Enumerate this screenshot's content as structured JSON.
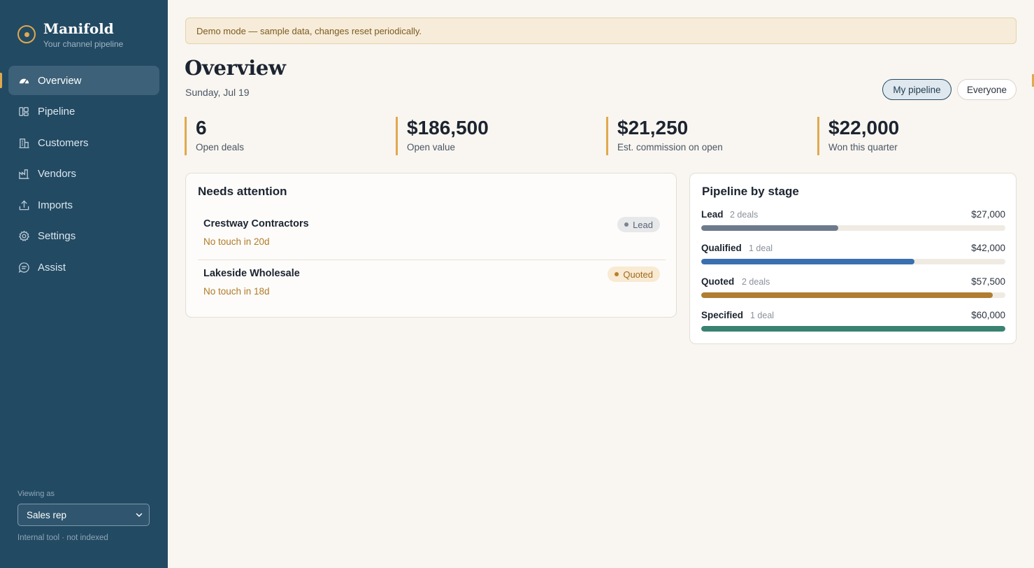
{
  "brand": {
    "name": "Manifold",
    "subtitle": "Your channel pipeline"
  },
  "nav": [
    {
      "label": "Overview",
      "icon": "dashboard-icon",
      "active": true
    },
    {
      "label": "Pipeline",
      "icon": "pipeline-icon",
      "active": false
    },
    {
      "label": "Customers",
      "icon": "building-icon",
      "active": false
    },
    {
      "label": "Vendors",
      "icon": "factory-icon",
      "active": false
    },
    {
      "label": "Imports",
      "icon": "upload-icon",
      "active": false
    },
    {
      "label": "Settings",
      "icon": "gear-icon",
      "active": false
    },
    {
      "label": "Assist",
      "icon": "chat-icon",
      "active": false
    }
  ],
  "sidebar_footer": {
    "viewing_label": "Viewing as",
    "role": "Sales rep",
    "note": "Internal tool · not indexed"
  },
  "banner": "Demo mode — sample data, changes reset periodically.",
  "page": {
    "title": "Overview",
    "date": "Sunday, Jul 19"
  },
  "scope_toggle": {
    "mine": "My pipeline",
    "everyone": "Everyone",
    "selected": "mine"
  },
  "stats": [
    {
      "value": "6",
      "label": "Open deals"
    },
    {
      "value": "$186,500",
      "label": "Open value"
    },
    {
      "value": "$21,250",
      "label": "Est. commission on open"
    },
    {
      "value": "$22,000",
      "label": "Won this quarter"
    }
  ],
  "attention": {
    "title": "Needs attention",
    "items": [
      {
        "name": "Crestway Contractors",
        "sub": "No touch in 20d",
        "badge": "Lead"
      },
      {
        "name": "Lakeside Wholesale",
        "sub": "No touch in 18d",
        "badge": "Quoted"
      }
    ]
  },
  "stages": {
    "title": "Pipeline by stage",
    "items": [
      {
        "name": "Lead",
        "count": "2 deals",
        "amount": "$27,000",
        "fraction": 0.45,
        "color": "#6c7a8c"
      },
      {
        "name": "Qualified",
        "count": "1 deal",
        "amount": "$42,000",
        "fraction": 0.7,
        "color": "#3a6fb0"
      },
      {
        "name": "Quoted",
        "count": "2 deals",
        "amount": "$57,500",
        "fraction": 0.958,
        "color": "#b07d31"
      },
      {
        "name": "Specified",
        "count": "1 deal",
        "amount": "$60,000",
        "fraction": 1.0,
        "color": "#3a8272"
      }
    ]
  }
}
